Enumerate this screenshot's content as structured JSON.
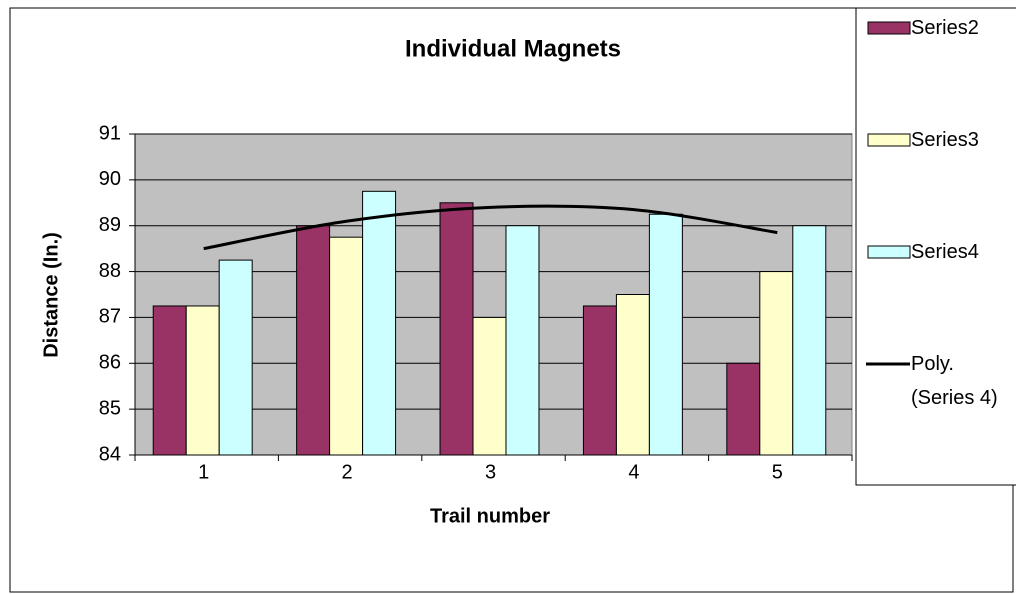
{
  "chart_data": {
    "type": "bar",
    "title": "Individual Magnets",
    "x_label": "Trail number",
    "y_label": "Distance (In.)",
    "categories": [
      "1",
      "2",
      "3",
      "4",
      "5"
    ],
    "series": [
      {
        "name": "Series2",
        "color": "#993366",
        "values": [
          87.25,
          89,
          89.5,
          87.25,
          86
        ]
      },
      {
        "name": "Series3",
        "color": "#ffffcc",
        "values": [
          87.25,
          88.75,
          87,
          87.5,
          88
        ]
      },
      {
        "name": "Series4",
        "color": "#ccffff",
        "values": [
          88.25,
          89.75,
          89,
          89.25,
          89
        ]
      },
      {
        "name": "Poly. (Series 4)",
        "type": "line",
        "color": "#000000",
        "values": [
          88.5,
          89.1,
          89.4,
          89.35,
          88.85
        ]
      }
    ],
    "ylim": [
      84,
      91
    ],
    "yticks": [
      84,
      85,
      86,
      87,
      88,
      89,
      90,
      91
    ],
    "grid": true,
    "plot_background": "#c0c0c0",
    "legend": "right"
  }
}
